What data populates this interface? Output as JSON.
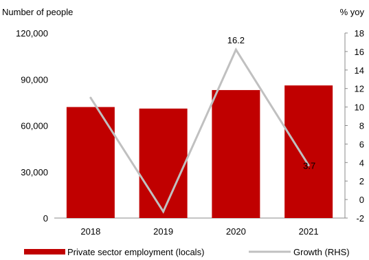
{
  "chart_data": {
    "type": "bar",
    "categories": [
      "2018",
      "2019",
      "2020",
      "2021"
    ],
    "left_axis": {
      "title": "Number of people",
      "ylim": [
        0,
        120000
      ],
      "ticks": [
        "0",
        "30,000",
        "60,000",
        "90,000",
        "120,000"
      ],
      "tick_values": [
        0,
        30000,
        60000,
        90000,
        120000
      ]
    },
    "right_axis": {
      "title": "% yoy",
      "ylim": [
        -2,
        18
      ],
      "ticks": [
        "-2",
        "0",
        "2",
        "4",
        "6",
        "8",
        "10",
        "12",
        "14",
        "16",
        "18"
      ],
      "tick_values": [
        -2,
        0,
        2,
        4,
        6,
        8,
        10,
        12,
        14,
        16,
        18
      ]
    },
    "series": [
      {
        "name": "Private sector employment (locals)",
        "type": "bar",
        "axis": "left",
        "color": "#c00000",
        "values": [
          72000,
          71000,
          83000,
          86000
        ]
      },
      {
        "name": "Growth (RHS)",
        "type": "line",
        "axis": "right",
        "color": "#c0c0c0",
        "values": [
          11.0,
          -1.3,
          16.2,
          3.7
        ]
      }
    ],
    "data_labels": [
      {
        "series": 1,
        "index": 2,
        "text": "16.2"
      },
      {
        "series": 1,
        "index": 3,
        "text": "3.7"
      }
    ],
    "grid": false,
    "legend_position": "bottom"
  }
}
